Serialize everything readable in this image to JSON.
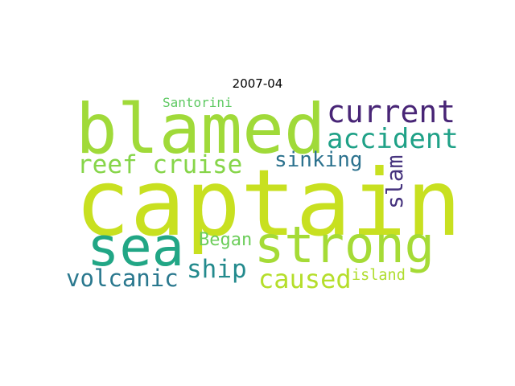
{
  "chart_data": {
    "type": "wordcloud",
    "title": "2007-04",
    "words": [
      {
        "text": "captain",
        "color": "#c8e020"
      },
      {
        "text": "blamed",
        "color": "#a0da39"
      },
      {
        "text": "current",
        "color": "#482576"
      },
      {
        "text": "accident",
        "color": "#1fa187"
      },
      {
        "text": "reef cruise",
        "color": "#86d549"
      },
      {
        "text": "sinking",
        "color": "#2c728e"
      },
      {
        "text": "slam",
        "color": "#46337e"
      },
      {
        "text": "sea",
        "color": "#21a685"
      },
      {
        "text": "strong",
        "color": "#a5db36"
      },
      {
        "text": "Began",
        "color": "#6ccd5a"
      },
      {
        "text": "ship",
        "color": "#238a8d"
      },
      {
        "text": "volcanic",
        "color": "#2a788e"
      },
      {
        "text": "caused",
        "color": "#b5de2b"
      },
      {
        "text": "island",
        "color": "#b0dd2f"
      },
      {
        "text": "Santorini",
        "color": "#5ec962"
      }
    ]
  }
}
